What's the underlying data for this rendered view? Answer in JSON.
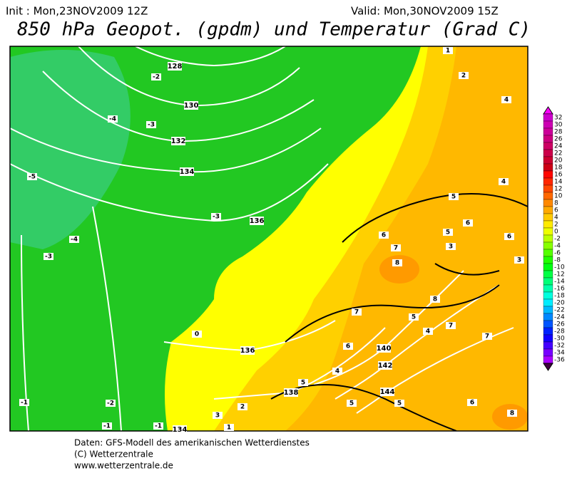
{
  "header": {
    "init": "Init : Mon,23NOV2009 12Z",
    "valid": "Valid: Mon,30NOV2009 15Z",
    "title": "850 hPa Geopot. (gpdm) und Temperatur (Grad C)"
  },
  "map": {
    "geopotential_labels": [
      "128",
      "130",
      "132",
      "134",
      "136",
      "136",
      "138",
      "140",
      "142",
      "144",
      "134"
    ],
    "temperature_labels": [
      "-2",
      "-4",
      "-3",
      "-5",
      "-3",
      "-4",
      "-3",
      "0",
      "-1",
      "-2",
      "-1",
      "-1",
      "1",
      "2",
      "4",
      "4",
      "5",
      "6",
      "6",
      "5",
      "3",
      "6",
      "7",
      "8",
      "7",
      "8",
      "5",
      "4",
      "7",
      "7",
      "6",
      "4",
      "5",
      "3",
      "2",
      "1",
      "5",
      "5",
      "6",
      "8",
      "3"
    ]
  },
  "colorbar": {
    "labels": [
      32,
      30,
      28,
      26,
      24,
      22,
      20,
      18,
      16,
      14,
      12,
      10,
      8,
      6,
      4,
      2,
      0,
      -2,
      -4,
      -6,
      -8,
      -10,
      -12,
      -14,
      -16,
      -18,
      -20,
      -22,
      -24,
      -26,
      -28,
      -30,
      -32,
      -34,
      -36
    ]
  },
  "footer": {
    "lines": [
      "Daten: GFS-Modell des amerikanischen Wetterdienstes",
      "(C) Wetterzentrale",
      "www.wetterzentrale.de"
    ]
  }
}
